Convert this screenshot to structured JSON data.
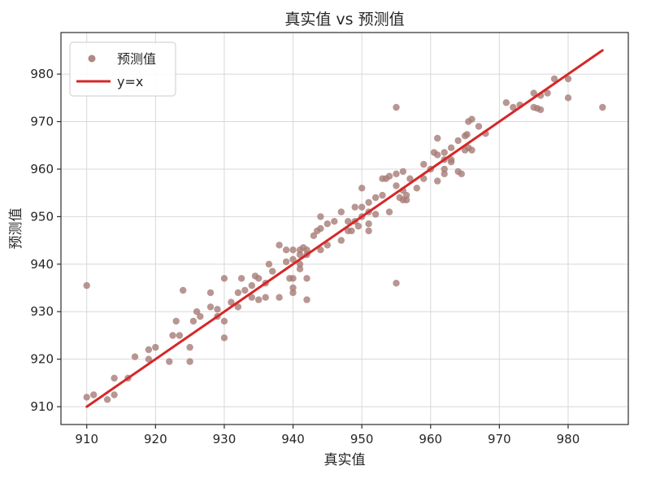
{
  "figure": {
    "background": "#ffffff"
  },
  "chart_data": {
    "type": "scatter",
    "title": "真实值 vs 预测值",
    "xlabel": "真实值",
    "ylabel": "预测值",
    "xlim": [
      906.25,
      988.75
    ],
    "ylim": [
      906.25,
      988.75
    ],
    "xticks": [
      910,
      920,
      930,
      940,
      950,
      960,
      970,
      980
    ],
    "yticks": [
      910,
      920,
      930,
      940,
      950,
      960,
      970,
      980
    ],
    "grid": true,
    "grid_color": "#d8d8d8",
    "axis_color": "#2b2b2b",
    "legend": {
      "position": "upper left",
      "entries": [
        {
          "label": "预测值",
          "type": "marker",
          "color": "#a67c76"
        },
        {
          "label": "y=x",
          "type": "line",
          "color": "#d62728"
        }
      ]
    },
    "series": [
      {
        "name": "预测值",
        "type": "scatter",
        "color": "#a67c76",
        "opacity": 0.8,
        "marker_radius": 4.2,
        "points": [
          [
            910,
            912
          ],
          [
            911,
            912.5
          ],
          [
            913,
            911.5
          ],
          [
            914,
            912.5
          ],
          [
            914,
            916
          ],
          [
            916,
            916
          ],
          [
            917,
            920.5
          ],
          [
            919,
            920
          ],
          [
            919,
            922
          ],
          [
            920,
            922.5
          ],
          [
            922,
            919.5
          ],
          [
            925,
            919.5
          ],
          [
            925,
            922.5
          ],
          [
            922.5,
            925
          ],
          [
            923.5,
            925
          ],
          [
            923,
            928
          ],
          [
            925.5,
            928
          ],
          [
            924,
            934.5
          ],
          [
            926,
            930
          ],
          [
            926.5,
            929
          ],
          [
            928,
            934
          ],
          [
            928,
            931
          ],
          [
            929,
            930.5
          ],
          [
            929,
            929
          ],
          [
            930,
            937
          ],
          [
            930,
            928
          ],
          [
            930,
            924.5
          ],
          [
            931,
            932
          ],
          [
            932.5,
            937
          ],
          [
            932,
            934
          ],
          [
            933,
            934.5
          ],
          [
            934,
            935.5
          ],
          [
            934,
            933
          ],
          [
            934.5,
            937.5
          ],
          [
            935,
            937
          ],
          [
            936,
            936
          ],
          [
            935,
            932.5
          ],
          [
            932,
            931
          ],
          [
            936,
            933
          ],
          [
            910,
            935.5
          ],
          [
            936.5,
            940
          ],
          [
            937,
            938.5
          ],
          [
            938,
            944
          ],
          [
            938,
            933
          ],
          [
            939,
            940.5
          ],
          [
            939.5,
            937
          ],
          [
            940,
            937
          ],
          [
            940,
            934
          ],
          [
            939,
            943
          ],
          [
            940,
            943
          ],
          [
            941,
            943
          ],
          [
            941.5,
            943.5
          ],
          [
            942,
            943
          ],
          [
            941,
            942
          ],
          [
            940,
            941
          ],
          [
            941,
            940
          ],
          [
            941,
            939
          ],
          [
            942,
            942
          ],
          [
            942,
            937
          ],
          [
            940,
            935
          ],
          [
            942,
            932.5
          ],
          [
            943,
            946
          ],
          [
            943.5,
            947
          ],
          [
            944,
            947.5
          ],
          [
            944,
            950
          ],
          [
            945,
            948.5
          ],
          [
            944,
            943
          ],
          [
            945,
            944
          ],
          [
            946,
            949
          ],
          [
            947,
            945
          ],
          [
            947,
            951
          ],
          [
            948,
            947
          ],
          [
            948.5,
            947
          ],
          [
            949,
            952
          ],
          [
            948,
            949
          ],
          [
            949,
            949
          ],
          [
            949.5,
            948
          ],
          [
            950,
            950
          ],
          [
            950,
            952
          ],
          [
            951,
            953
          ],
          [
            951,
            951
          ],
          [
            952,
            950.5
          ],
          [
            951,
            948.5
          ],
          [
            951,
            947
          ],
          [
            950,
            956
          ],
          [
            952,
            954
          ],
          [
            953,
            958
          ],
          [
            953.5,
            958
          ],
          [
            954,
            958.5
          ],
          [
            955,
            959
          ],
          [
            956,
            959.5
          ],
          [
            953,
            954.5
          ],
          [
            954,
            951
          ],
          [
            955,
            956.5
          ],
          [
            955.5,
            954
          ],
          [
            956,
            953.5
          ],
          [
            956.5,
            953.5
          ],
          [
            956,
            955.5
          ],
          [
            956.5,
            954.5
          ],
          [
            957,
            958
          ],
          [
            958,
            956
          ],
          [
            959,
            961
          ],
          [
            959,
            958
          ],
          [
            955,
            936
          ],
          [
            955,
            973
          ],
          [
            960.5,
            963.5
          ],
          [
            961,
            963
          ],
          [
            960,
            960
          ],
          [
            961,
            957.5
          ],
          [
            962,
            960
          ],
          [
            962,
            959
          ],
          [
            962,
            963.5
          ],
          [
            963,
            964.5
          ],
          [
            963,
            961.5
          ],
          [
            964,
            959.5
          ],
          [
            964.5,
            959
          ],
          [
            961,
            966.5
          ],
          [
            962,
            962
          ],
          [
            963,
            962
          ],
          [
            964,
            966
          ],
          [
            965,
            964
          ],
          [
            965.5,
            964.5
          ],
          [
            966,
            964
          ],
          [
            965,
            967
          ],
          [
            965.3,
            967.3
          ],
          [
            965.5,
            970
          ],
          [
            966,
            970.5
          ],
          [
            967,
            969
          ],
          [
            968,
            967.5
          ],
          [
            971,
            974
          ],
          [
            972,
            973
          ],
          [
            973,
            973.5
          ],
          [
            975,
            973
          ],
          [
            975.5,
            972.8
          ],
          [
            976,
            972.5
          ],
          [
            975,
            976
          ],
          [
            976,
            975.5
          ],
          [
            977,
            976
          ],
          [
            978,
            979
          ],
          [
            980,
            979
          ],
          [
            980,
            975
          ],
          [
            985,
            973
          ]
        ]
      },
      {
        "name": "y=x",
        "type": "line",
        "color": "#d62728",
        "width": 3,
        "x": [
          910,
          985
        ],
        "y": [
          910,
          985
        ]
      }
    ]
  }
}
